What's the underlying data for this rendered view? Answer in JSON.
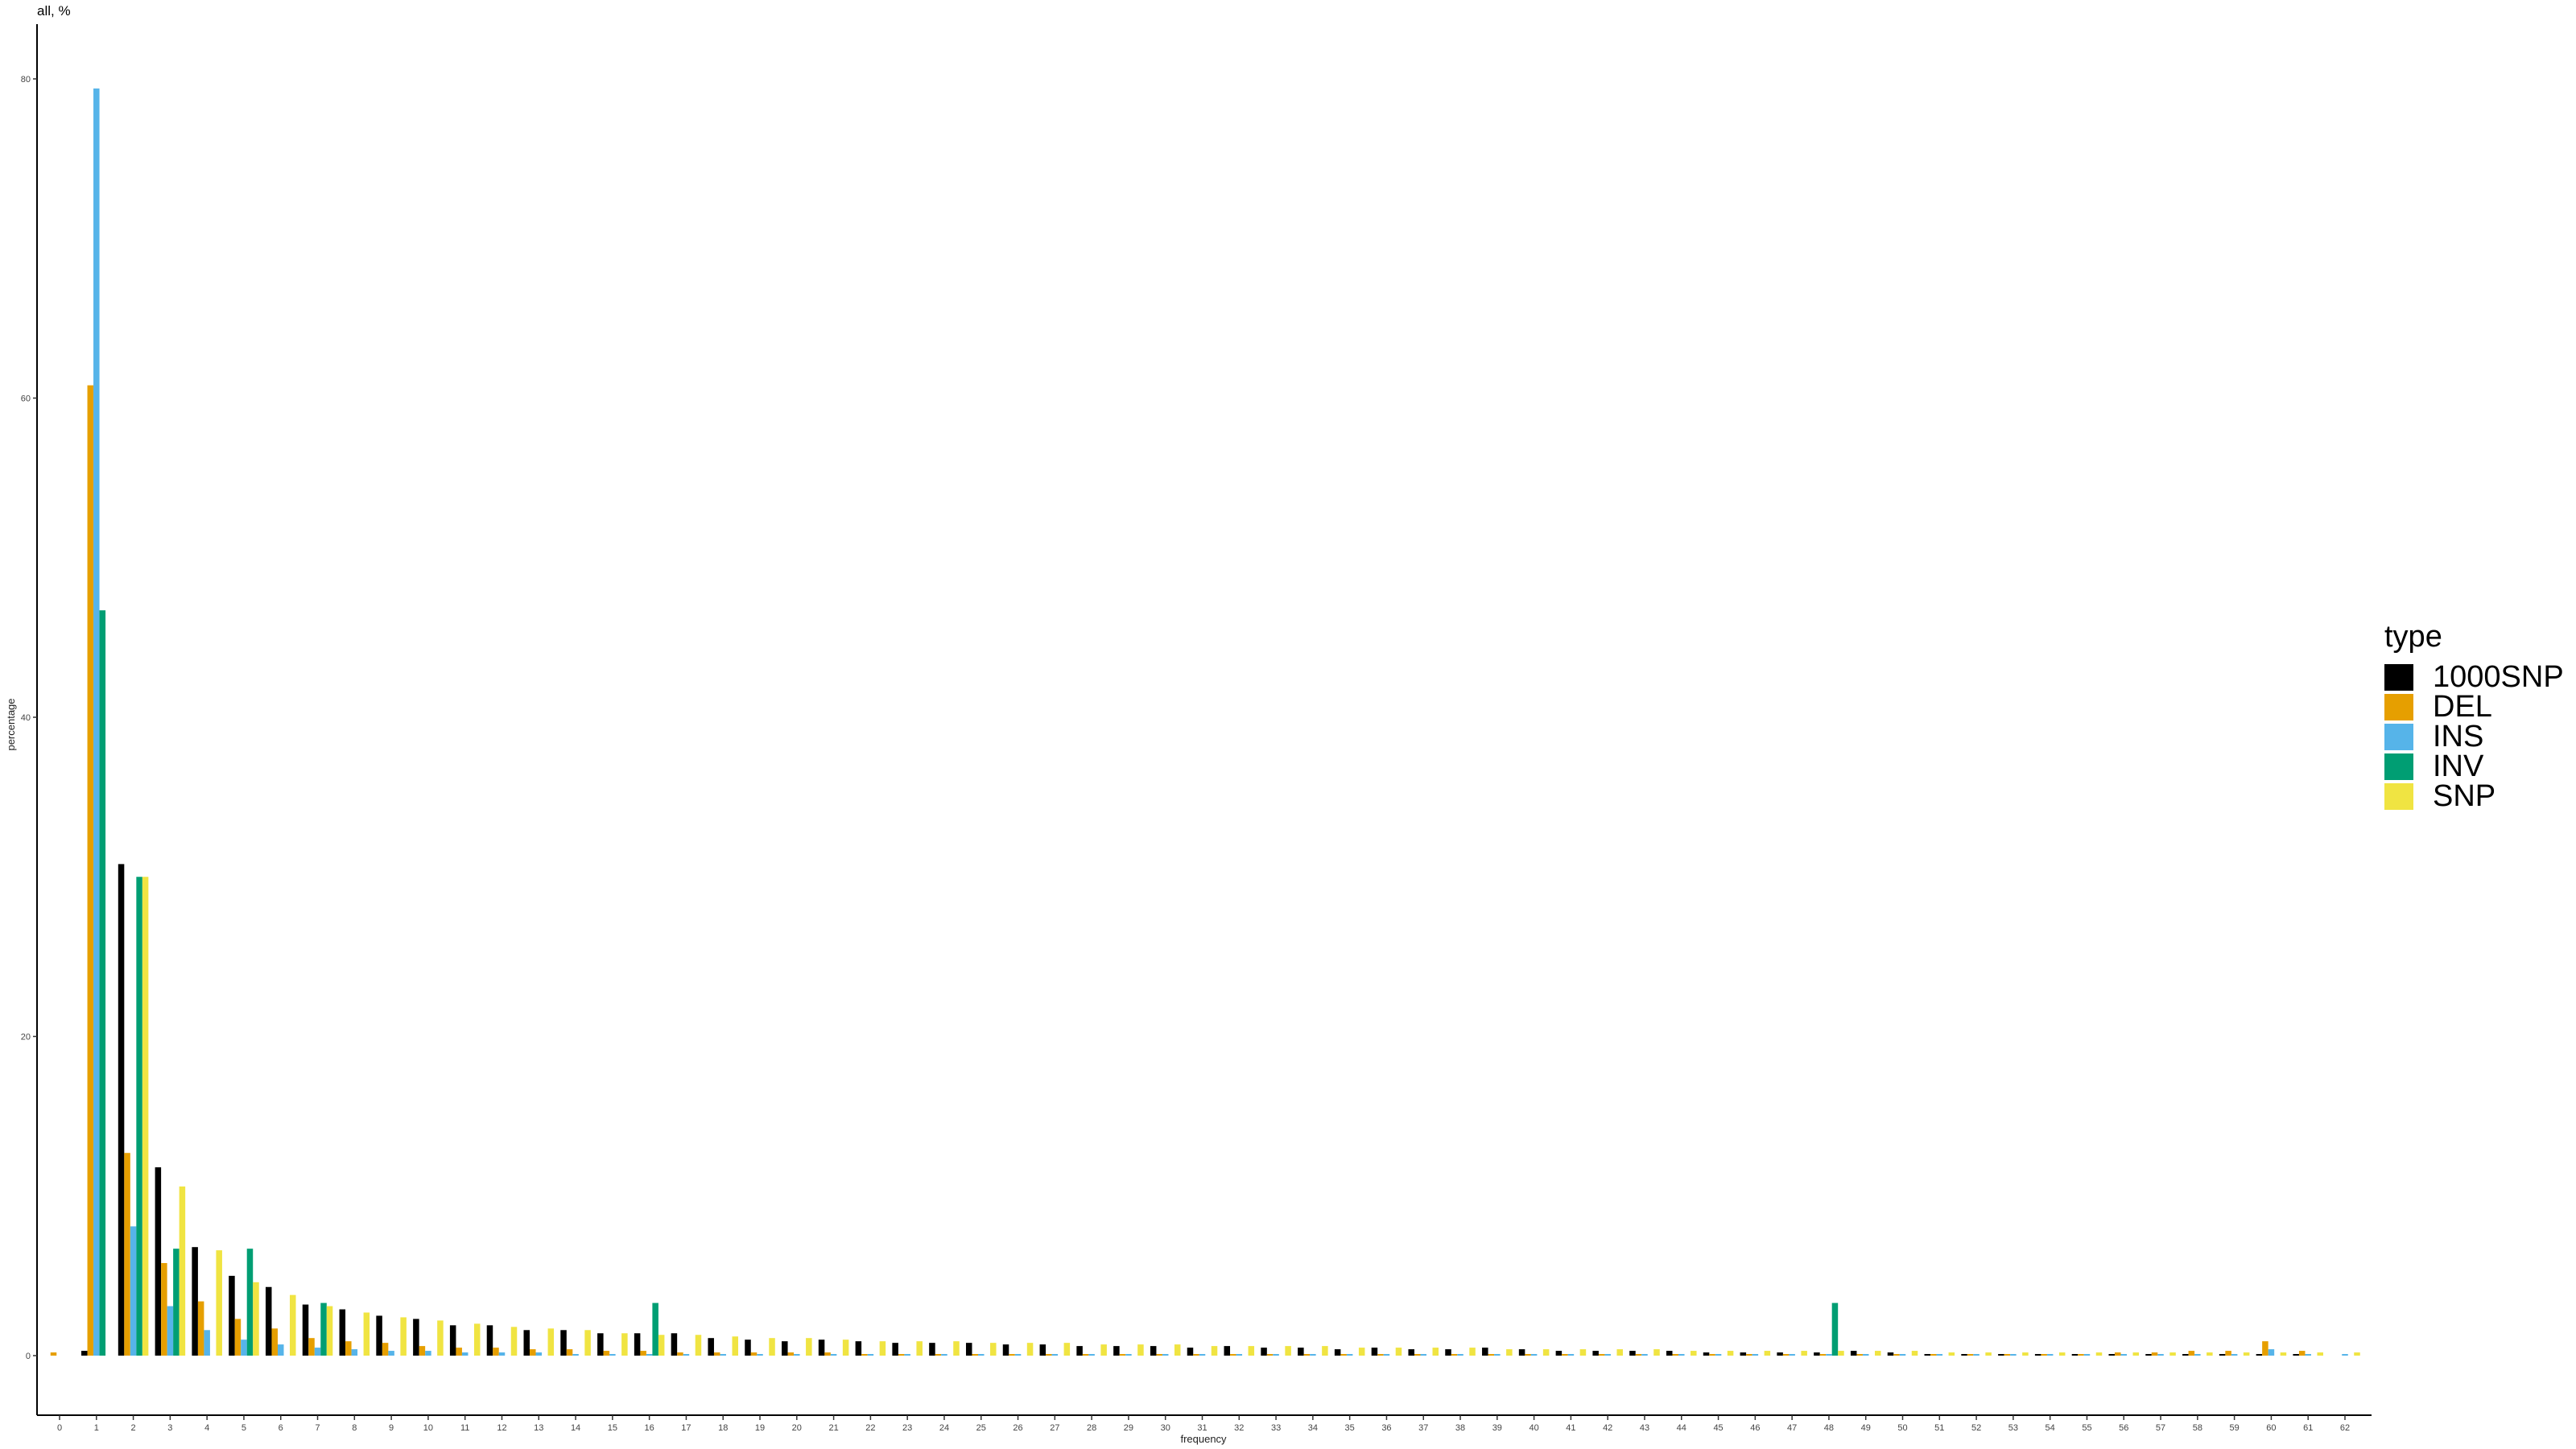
{
  "chart_data": {
    "type": "bar",
    "title": "all, %",
    "xlabel": "frequency",
    "ylabel": "percentage",
    "ylim": [
      0,
      80
    ],
    "yticks": [
      0,
      20,
      40,
      60,
      80
    ],
    "categories": [
      0,
      1,
      2,
      3,
      4,
      5,
      6,
      7,
      8,
      9,
      10,
      11,
      12,
      13,
      14,
      15,
      16,
      17,
      18,
      19,
      20,
      21,
      22,
      23,
      24,
      25,
      26,
      27,
      28,
      29,
      30,
      31,
      32,
      33,
      34,
      35,
      36,
      37,
      38,
      39,
      40,
      41,
      42,
      43,
      44,
      45,
      46,
      47,
      48,
      49,
      50,
      51,
      52,
      53,
      54,
      55,
      56,
      57,
      58,
      59,
      60,
      61,
      62
    ],
    "grid": false,
    "legend_position": "right",
    "legend_title": "type",
    "series": [
      {
        "name": "1000SNP",
        "color": "#000000",
        "values": [
          0,
          0.3,
          30.8,
          11.8,
          6.8,
          5.0,
          4.3,
          3.2,
          2.9,
          2.5,
          2.3,
          1.9,
          1.9,
          1.6,
          1.6,
          1.4,
          1.4,
          1.4,
          1.1,
          1.0,
          0.9,
          1.0,
          0.9,
          0.8,
          0.8,
          0.8,
          0.7,
          0.7,
          0.6,
          0.6,
          0.6,
          0.5,
          0.6,
          0.5,
          0.5,
          0.4,
          0.5,
          0.4,
          0.4,
          0.5,
          0.4,
          0.3,
          0.3,
          0.3,
          0.3,
          0.2,
          0.2,
          0.2,
          0.2,
          0.3,
          0.2,
          0.1,
          0.1,
          0.1,
          0.1,
          0.1,
          0.1,
          0.1,
          0.1,
          0.1,
          0.1,
          0.1,
          0
        ]
      },
      {
        "name": "DEL",
        "color": "#E69F00",
        "values": [
          0.2,
          60.8,
          12.7,
          5.8,
          3.4,
          2.3,
          1.7,
          1.1,
          0.9,
          0.8,
          0.6,
          0.5,
          0.5,
          0.4,
          0.4,
          0.3,
          0.3,
          0.2,
          0.2,
          0.2,
          0.2,
          0.2,
          0.1,
          0.1,
          0.1,
          0.1,
          0.1,
          0.1,
          0.1,
          0.1,
          0.1,
          0.1,
          0.1,
          0.1,
          0.1,
          0.1,
          0.1,
          0.1,
          0.1,
          0.1,
          0.1,
          0.1,
          0.1,
          0.1,
          0.1,
          0.1,
          0.1,
          0.1,
          0.1,
          0.1,
          0.1,
          0.1,
          0.1,
          0.1,
          0.1,
          0.1,
          0.2,
          0.2,
          0.3,
          0.3,
          0.9,
          0.3,
          0
        ]
      },
      {
        "name": "INS",
        "color": "#56B4E9",
        "values": [
          0,
          79.4,
          8.1,
          3.1,
          1.6,
          1.0,
          0.7,
          0.5,
          0.4,
          0.3,
          0.3,
          0.2,
          0.2,
          0.2,
          0.1,
          0.1,
          0.1,
          0.1,
          0.1,
          0.1,
          0.1,
          0.1,
          0.1,
          0.1,
          0.1,
          0.1,
          0.1,
          0.1,
          0.1,
          0.1,
          0.1,
          0.1,
          0.1,
          0.1,
          0.1,
          0.1,
          0.1,
          0.1,
          0.1,
          0.1,
          0.1,
          0.1,
          0.1,
          0.1,
          0.1,
          0.1,
          0.1,
          0.1,
          0.1,
          0.1,
          0.1,
          0.1,
          0.1,
          0.1,
          0.1,
          0.1,
          0.1,
          0.1,
          0.1,
          0.1,
          0.4,
          0.1,
          0.1
        ]
      },
      {
        "name": "INV",
        "color": "#009E73",
        "values": [
          0,
          46.7,
          30.0,
          6.7,
          0,
          6.7,
          0,
          3.3,
          0,
          0,
          0,
          0,
          0,
          0,
          0,
          0,
          3.3,
          0,
          0,
          0,
          0,
          0,
          0,
          0,
          0,
          0,
          0,
          0,
          0,
          0,
          0,
          0,
          0,
          0,
          0,
          0,
          0,
          0,
          0,
          0,
          0,
          0,
          0,
          0,
          0,
          0,
          0,
          0,
          3.3,
          0,
          0,
          0,
          0,
          0,
          0,
          0,
          0,
          0,
          0,
          0,
          0,
          0,
          0
        ]
      },
      {
        "name": "SNP",
        "color": "#F0E442",
        "values": [
          0,
          0,
          30.0,
          10.6,
          6.6,
          4.6,
          3.8,
          3.1,
          2.7,
          2.4,
          2.2,
          2.0,
          1.8,
          1.7,
          1.6,
          1.4,
          1.3,
          1.3,
          1.2,
          1.1,
          1.1,
          1.0,
          0.9,
          0.9,
          0.9,
          0.8,
          0.8,
          0.8,
          0.7,
          0.7,
          0.7,
          0.6,
          0.6,
          0.6,
          0.6,
          0.5,
          0.5,
          0.5,
          0.5,
          0.4,
          0.4,
          0.4,
          0.4,
          0.4,
          0.3,
          0.3,
          0.3,
          0.3,
          0.3,
          0.3,
          0.3,
          0.2,
          0.2,
          0.2,
          0.2,
          0.2,
          0.2,
          0.2,
          0.2,
          0.2,
          0.2,
          0.2,
          0.2
        ]
      }
    ]
  }
}
